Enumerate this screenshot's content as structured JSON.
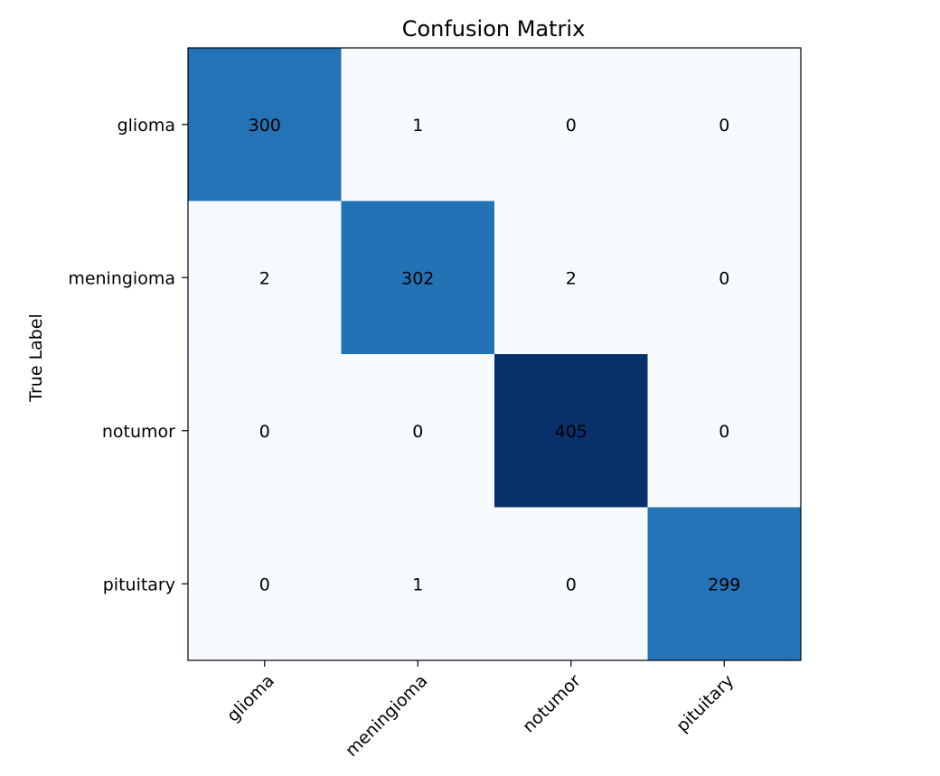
{
  "chart_data": {
    "type": "heatmap",
    "title": "Confusion Matrix",
    "xlabel": "",
    "ylabel": "True Label",
    "x_categories": [
      "glioma",
      "meningioma",
      "notumor",
      "pituitary"
    ],
    "y_categories": [
      "glioma",
      "meningioma",
      "notumor",
      "pituitary"
    ],
    "values": [
      [
        300,
        1,
        0,
        0
      ],
      [
        2,
        302,
        2,
        0
      ],
      [
        0,
        0,
        405,
        0
      ],
      [
        0,
        1,
        0,
        299
      ]
    ],
    "colormap": "Blues",
    "color_min": "#f7fbff",
    "color_max": "#08306b",
    "vmin": 0,
    "vmax": 405
  }
}
